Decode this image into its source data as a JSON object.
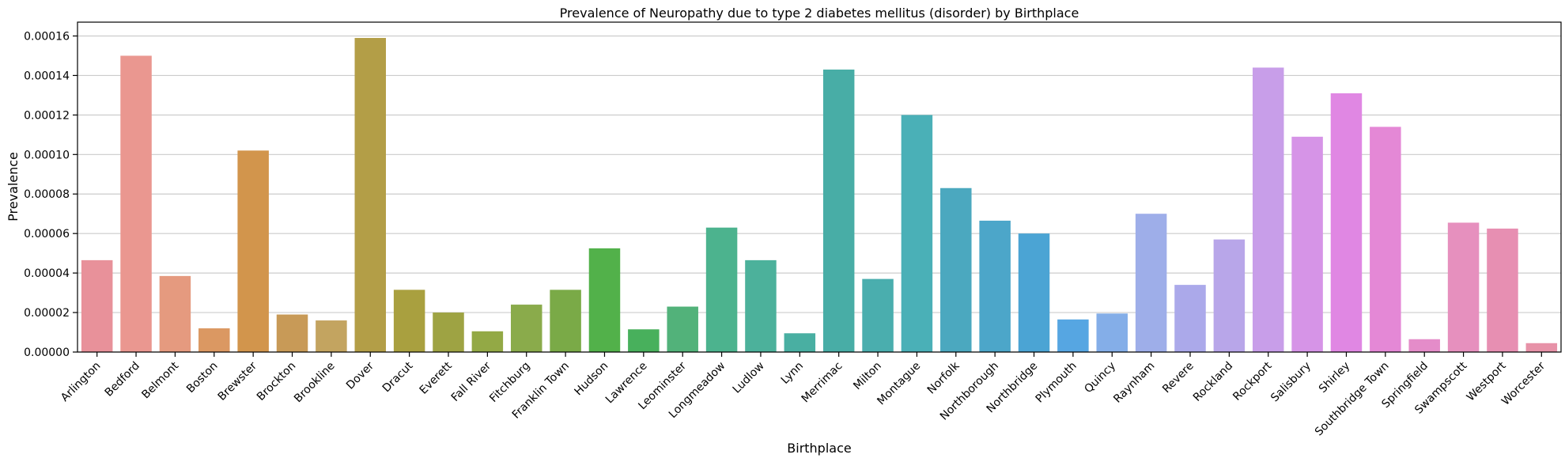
{
  "chart_data": {
    "type": "bar",
    "title": "Prevalence of Neuropathy due to type 2 diabetes mellitus (disorder) by Birthplace",
    "xlabel": "Birthplace",
    "ylabel": "Prevalence",
    "ylim": [
      0,
      0.000167
    ],
    "yticks": [
      "0.00000",
      "0.00002",
      "0.00004",
      "0.00006",
      "0.00008",
      "0.00010",
      "0.00012",
      "0.00014",
      "0.00016"
    ],
    "ytick_values": [
      0,
      2e-05,
      4e-05,
      6e-05,
      8e-05,
      0.0001,
      0.00012,
      0.00014,
      0.00016
    ],
    "grid": "horizontal",
    "categories": [
      "Arlington",
      "Bedford",
      "Belmont",
      "Boston",
      "Brewster",
      "Brockton",
      "Brookline",
      "Dover",
      "Dracut",
      "Everett",
      "Fall River",
      "Fitchburg",
      "Franklin Town",
      "Hudson",
      "Lawrence",
      "Leominster",
      "Longmeadow",
      "Ludlow",
      "Lynn",
      "Merrimac",
      "Milton",
      "Montague",
      "Norfolk",
      "Northborough",
      "Northbridge",
      "Plymouth",
      "Quincy",
      "Raynham",
      "Revere",
      "Rockland",
      "Rockport",
      "Salisbury",
      "Shirley",
      "Southbridge Town",
      "Springfield",
      "Swampscott",
      "Westport",
      "Worcester"
    ],
    "values": [
      4.65e-05,
      0.00015,
      3.85e-05,
      1.2e-05,
      0.000102,
      1.9e-05,
      1.6e-05,
      0.000159,
      3.15e-05,
      2e-05,
      1.05e-05,
      2.4e-05,
      3.15e-05,
      5.25e-05,
      1.15e-05,
      2.3e-05,
      6.3e-05,
      4.65e-05,
      9.5e-06,
      0.000143,
      3.7e-05,
      0.00012,
      8.3e-05,
      6.65e-05,
      6e-05,
      1.65e-05,
      1.95e-05,
      7e-05,
      3.4e-05,
      5.7e-05,
      0.000144,
      0.000109,
      0.000131,
      0.000114,
      6.5e-06,
      6.55e-05,
      6.25e-05,
      4.5e-06
    ],
    "colors": [
      "#e8919a",
      "#ea9790",
      "#e59a7f",
      "#db9862",
      "#d2954c",
      "#c89a57",
      "#c3a460",
      "#b39e47",
      "#a9a03f",
      "#9ea343",
      "#93a945",
      "#8aab4b",
      "#7aaa47",
      "#52b14a",
      "#48b05c",
      "#52b27a",
      "#4cb38e",
      "#4cb19b",
      "#49afa2",
      "#48ada6",
      "#4aaeae",
      "#4ab0b7",
      "#4ba8bf",
      "#4ca6c9",
      "#4ba4d4",
      "#56a6e2",
      "#84aee8",
      "#9eaee9",
      "#aba9ea",
      "#b8a6e9",
      "#c89ee9",
      "#d694e7",
      "#e087e3",
      "#e488d6",
      "#e48cc9",
      "#e690be",
      "#e78fb2",
      "#e792a8"
    ]
  }
}
